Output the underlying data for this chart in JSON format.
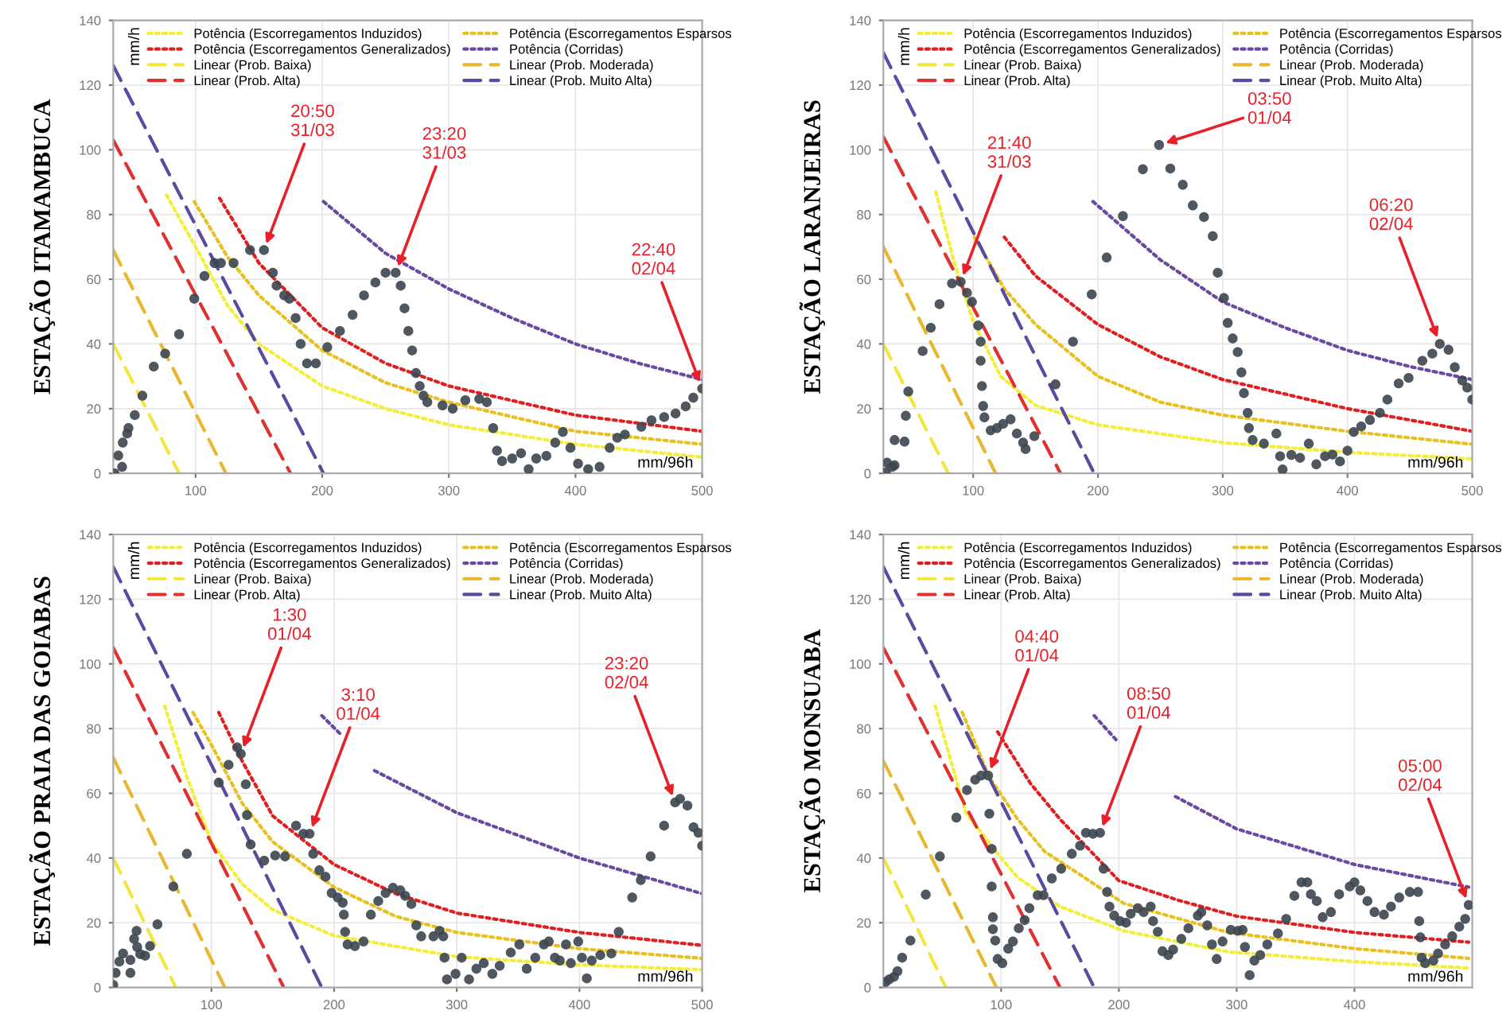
{
  "chart_data": [
    {
      "type": "scatter",
      "title": "ESTAÇÃO ITAMAMBUCA",
      "xlabel": "mm/96h",
      "ylabel": "mm/h",
      "xlim": [
        35,
        500
      ],
      "ylim": [
        0,
        140
      ],
      "xticks": [
        100,
        200,
        300,
        400,
        500
      ],
      "yticks": [
        0,
        20,
        40,
        60,
        80,
        100,
        120,
        140
      ],
      "grid": true,
      "legend": "top",
      "series": [
        {
          "name": "Potência (Escorregamentos Induzidos)",
          "type": "line",
          "line_style": "dotted",
          "color": "#f2ee3a",
          "x": [
            77,
            100,
            125,
            150,
            200,
            250,
            300,
            400,
            500
          ],
          "values": [
            86,
            70,
            52,
            40,
            27,
            20,
            15,
            9,
            5
          ]
        },
        {
          "name": "Potência (Escorregamentos Esparsos",
          "type": "line",
          "line_style": "dotted",
          "color": "#e8c020",
          "x": [
            99,
            125,
            150,
            200,
            250,
            300,
            400,
            500
          ],
          "values": [
            84,
            67,
            55,
            38,
            28,
            22,
            13,
            9
          ]
        },
        {
          "name": "Potência (Escorregamentos Generalizados)",
          "type": "line",
          "line_style": "dotted",
          "color": "#e02020",
          "x": [
            119,
            150,
            200,
            250,
            300,
            400,
            500
          ],
          "values": [
            85,
            65,
            45,
            34,
            27,
            18,
            13
          ]
        },
        {
          "name": "Potência (Corridas)",
          "type": "line",
          "line_style": "dotted",
          "color": "#6a4aa0",
          "x": [
            201,
            250,
            300,
            350,
            400,
            450,
            500
          ],
          "values": [
            84,
            68,
            57,
            48,
            40,
            34,
            29
          ]
        },
        {
          "name": "Linear (Prob. Baixa)",
          "type": "line",
          "line_style": "dashed",
          "color": "#f2e640",
          "x": [
            35,
            87
          ],
          "values": [
            40,
            0
          ]
        },
        {
          "name": "Linear (Prob. Moderada)",
          "type": "line",
          "line_style": "dashed",
          "color": "#e8b830",
          "x": [
            35,
            124
          ],
          "values": [
            69,
            0
          ]
        },
        {
          "name": "Linear (Prob. Alta)",
          "type": "line",
          "line_style": "dashed",
          "color": "#e03030",
          "x": [
            35,
            175
          ],
          "values": [
            103,
            0
          ]
        },
        {
          "name": "Linear (Prob. Muito Alta)",
          "type": "line",
          "line_style": "dashed",
          "color": "#5a4aa0",
          "x": [
            35,
            201
          ],
          "values": [
            126,
            0
          ]
        },
        {
          "marker": "circle",
          "color": "#3c4650",
          "x": [
            36,
            39,
            42,
            42.5,
            46,
            47,
            52,
            58,
            67,
            76,
            87,
            99,
            107,
            115,
            120,
            130,
            143,
            154,
            161,
            164,
            170,
            174,
            179,
            183,
            188,
            195,
            204,
            214,
            224,
            233,
            242,
            250,
            258,
            262,
            265,
            268,
            271,
            274,
            277,
            280,
            283,
            295,
            303,
            313,
            324,
            330,
            335,
            338,
            342,
            350,
            357,
            363,
            369,
            377,
            384,
            390,
            396,
            402,
            410,
            419,
            427,
            433,
            439,
            452,
            460,
            470,
            479,
            487,
            493,
            500
          ],
          "values": [
            0,
            5.5,
            2,
            9.5,
            12.3,
            14,
            18,
            24,
            33,
            37,
            43,
            54,
            61,
            65,
            65,
            65,
            69,
            69,
            62,
            58,
            55,
            54,
            48,
            40,
            34,
            34,
            39,
            44,
            49,
            55,
            59,
            62,
            62,
            58,
            51,
            44,
            38,
            31,
            27,
            24,
            22,
            21,
            20,
            22.6,
            23,
            22,
            14,
            7,
            3.8,
            4.6,
            6.2,
            1.3,
            4.6,
            5.4,
            9.5,
            12.8,
            7.9,
            3,
            1.3,
            2,
            7.9,
            11,
            12,
            14.4,
            16.4,
            17.4,
            18.5,
            20.7,
            23.4,
            26.2
          ]
        }
      ],
      "annotations": [
        {
          "text": "20:50\n31/03",
          "x": 154,
          "y": 69
        },
        {
          "text": "23:20\n31/03",
          "x": 258,
          "y": 62
        },
        {
          "text": "22:40\n02/04",
          "x": 500,
          "y": 26.2
        }
      ]
    },
    {
      "type": "scatter",
      "title": "ESTAÇÃO LARANJEIRAS",
      "xlabel": "mm/96h",
      "ylabel": "mm/h",
      "xlim": [
        28,
        500
      ],
      "ylim": [
        0,
        140
      ],
      "xticks": [
        100,
        200,
        300,
        400,
        500
      ],
      "yticks": [
        0,
        20,
        40,
        60,
        80,
        100,
        120,
        140
      ],
      "grid": true,
      "legend": "top",
      "series": [
        {
          "name": "Potência (Escorregamentos Induzidos)",
          "type": "line",
          "line_style": "dotted",
          "color": "#f2ee3a",
          "x": [
            70,
            85,
            100,
            122,
            150,
            200,
            300,
            400,
            500
          ],
          "values": [
            87,
            65,
            47,
            30,
            21,
            15,
            9.5,
            6.5,
            4.5
          ]
        },
        {
          "name": "Potência (Escorregamentos Esparsos",
          "type": "line",
          "line_style": "dotted",
          "color": "#e8c020",
          "x": [
            101,
            125,
            150,
            200,
            250,
            300,
            400,
            500
          ],
          "values": [
            73,
            57,
            46,
            30,
            22,
            18,
            13,
            9
          ]
        },
        {
          "name": "Potência (Escorregamentos Generalizados)",
          "type": "line",
          "line_style": "dotted",
          "color": "#e02020",
          "x": [
            125,
            150,
            200,
            250,
            300,
            400,
            500
          ],
          "values": [
            73,
            61,
            46,
            36,
            29,
            20,
            13
          ]
        },
        {
          "name": "Potência (Corridas)",
          "type": "line",
          "line_style": "dotted",
          "color": "#6a4aa0",
          "x": [
            196,
            250,
            300,
            350,
            400,
            450,
            500
          ],
          "values": [
            84,
            66,
            53,
            45,
            38,
            33,
            29
          ]
        },
        {
          "name": "Linear (Prob. Baixa)",
          "type": "line",
          "line_style": "dashed",
          "color": "#f2e640",
          "x": [
            28,
            80
          ],
          "values": [
            40,
            0
          ]
        },
        {
          "name": "Linear (Prob. Moderada)",
          "type": "line",
          "line_style": "dashed",
          "color": "#e8b830",
          "x": [
            28,
            118
          ],
          "values": [
            70,
            0
          ]
        },
        {
          "name": "Linear (Prob. Alta)",
          "type": "line",
          "line_style": "dashed",
          "color": "#e03030",
          "x": [
            28,
            170
          ],
          "values": [
            104,
            0
          ]
        },
        {
          "name": "Linear (Prob. Muito Alta)",
          "type": "line",
          "line_style": "dashed",
          "color": "#5a4aa0",
          "x": [
            28,
            197
          ],
          "values": [
            130,
            0
          ]
        },
        {
          "marker": "circle",
          "color": "#3c4650",
          "x": [
            30,
            31,
            35,
            37,
            37,
            45,
            46,
            48,
            59.5,
            66,
            73,
            83,
            90,
            95,
            99,
            104,
            106,
            106,
            107,
            108,
            109,
            114,
            119,
            124,
            130,
            135,
            140,
            142,
            149,
            166,
            180,
            195,
            207,
            220,
            236,
            249,
            258,
            268,
            276,
            285,
            292,
            296,
            301,
            304,
            308,
            312,
            315,
            317,
            320,
            321,
            324,
            333,
            343,
            346,
            348,
            355,
            362,
            369,
            375,
            382,
            388,
            394,
            400,
            405,
            411,
            418,
            426,
            432,
            441,
            449,
            460,
            468,
            474,
            481,
            486,
            492,
            496,
            500
          ],
          "values": [
            0.3,
            3.3,
            2,
            10.3,
            2.5,
            9.8,
            17.8,
            25.3,
            37.8,
            45,
            52.3,
            58.7,
            59.2,
            55.8,
            53,
            45.7,
            40.7,
            34.8,
            27,
            20.8,
            17.3,
            13.3,
            14,
            15.3,
            16.7,
            12.3,
            9.5,
            7.5,
            11.5,
            27.5,
            40.7,
            55.3,
            66.7,
            79.5,
            94,
            101.5,
            94.2,
            89.2,
            82.8,
            79.2,
            73.3,
            62,
            54.2,
            46.5,
            41.7,
            37.5,
            31.2,
            24.8,
            18.7,
            14,
            10.3,
            9.2,
            12.3,
            5.3,
            1.2,
            5.7,
            4.8,
            9.2,
            2.8,
            5.3,
            5.8,
            3.7,
            7,
            12.8,
            14.5,
            16.5,
            18.7,
            22.8,
            27.8,
            29.5,
            34.8,
            37,
            40,
            38.2,
            32.8,
            28.7,
            26.5,
            22.8
          ]
        }
      ],
      "annotations": [
        {
          "text": "21:40\n31/03",
          "x": 90,
          "y": 59.2
        },
        {
          "text": "03:50\n01/04",
          "x": 249,
          "y": 101.5
        },
        {
          "text": "06:20\n02/04",
          "x": 474,
          "y": 40
        }
      ]
    },
    {
      "type": "scatter",
      "title": "ESTAÇÃO PRAIA DAS GOIABAS",
      "xlabel": "mm/96h",
      "ylabel": "mm/h",
      "xlim": [
        20,
        500
      ],
      "ylim": [
        0,
        140
      ],
      "xticks": [
        100,
        200,
        300,
        400,
        500
      ],
      "yticks": [
        0,
        20,
        40,
        60,
        80,
        100,
        120,
        140
      ],
      "grid": true,
      "legend": "top",
      "series": [
        {
          "name": "Potência (Escorregamentos Induzidos)",
          "type": "line",
          "line_style": "dotted",
          "color": "#f2ee3a",
          "x": [
            62,
            80,
            100,
            125,
            150,
            200,
            300,
            400,
            500
          ],
          "values": [
            87,
            65,
            45,
            32,
            24,
            16,
            9.5,
            7,
            5.5
          ]
        },
        {
          "name": "Potência (Escorregamentos Esparsos",
          "type": "line",
          "line_style": "dotted",
          "color": "#e8c020",
          "x": [
            85,
            100,
            125,
            150,
            200,
            250,
            300,
            400,
            500
          ],
          "values": [
            85,
            75,
            57,
            45,
            31,
            22,
            17,
            12,
            9
          ]
        },
        {
          "name": "Potência (Escorregamentos Generalizados)",
          "type": "line",
          "line_style": "dotted",
          "color": "#e02020",
          "x": [
            106,
            125,
            150,
            200,
            250,
            300,
            400,
            500
          ],
          "values": [
            85,
            70,
            53,
            38,
            29,
            23,
            17,
            13
          ]
        },
        {
          "name": "Potência (Corridas)",
          "type": "line",
          "line_style": "dotted",
          "color": "#6a4aa0",
          "x": [
            190,
            206,
            220,
            233,
            300,
            400,
            500
          ],
          "values": [
            84,
            78,
            null,
            67,
            54,
            40,
            29
          ]
        },
        {
          "name": "Linear (Prob. Baixa)",
          "type": "line",
          "line_style": "dashed",
          "color": "#f2e640",
          "x": [
            20,
            71
          ],
          "values": [
            40,
            0
          ]
        },
        {
          "name": "Linear (Prob. Moderada)",
          "type": "line",
          "line_style": "dashed",
          "color": "#e8b830",
          "x": [
            20,
            111
          ],
          "values": [
            71,
            0
          ]
        },
        {
          "name": "Linear (Prob. Alta)",
          "type": "line",
          "line_style": "dashed",
          "color": "#e03030",
          "x": [
            20,
            159
          ],
          "values": [
            105,
            0
          ]
        },
        {
          "name": "Linear (Prob. Muito Alta)",
          "type": "line",
          "line_style": "dashed",
          "color": "#5a4aa0",
          "x": [
            20,
            190
          ],
          "values": [
            130,
            0
          ]
        },
        {
          "marker": "circle",
          "color": "#3c4650",
          "x": [
            20,
            22,
            25,
            28,
            34,
            34,
            37,
            39,
            39.5,
            42,
            46,
            50,
            56,
            69,
            80,
            106,
            114,
            121,
            124,
            128,
            129,
            132,
            143,
            152,
            160,
            169,
            175,
            180,
            183,
            188,
            193,
            198,
            203,
            207,
            208,
            209,
            211,
            217,
            224,
            230,
            236,
            242,
            248,
            254,
            258,
            263,
            267,
            271,
            281,
            286,
            289,
            290,
            292,
            299,
            304,
            310,
            316,
            322,
            329,
            335,
            344,
            351,
            357,
            364,
            371,
            375,
            380,
            384,
            389,
            393,
            399,
            402,
            406,
            410,
            417,
            426,
            432,
            443,
            450,
            458,
            469,
            478,
            482,
            488,
            493,
            497,
            500
          ],
          "values": [
            0.8,
            4.5,
            8,
            10.5,
            4.5,
            8.5,
            15,
            17.5,
            12.5,
            10.3,
            9.8,
            12.8,
            19.5,
            31.2,
            41.3,
            63.3,
            68.8,
            74.2,
            72.2,
            62.8,
            53.3,
            44.2,
            39.2,
            40.8,
            40.5,
            50,
            47.5,
            47.5,
            41.3,
            36.2,
            34.2,
            29.2,
            27.8,
            26.2,
            22.5,
            17.2,
            13.3,
            12.8,
            14.2,
            22.5,
            26.7,
            29.2,
            30.8,
            30,
            28.3,
            25.8,
            19.2,
            15.8,
            15.8,
            17.5,
            15.8,
            9.2,
            2.5,
            4.2,
            9.2,
            2.5,
            5.8,
            7.5,
            4.2,
            6.7,
            10.8,
            13.3,
            5.8,
            9.2,
            13.3,
            14.2,
            9.2,
            8.3,
            13.3,
            7.5,
            14.2,
            9.2,
            2.8,
            8.3,
            10,
            10.5,
            17.2,
            27.8,
            33.2,
            40.5,
            50,
            57.2,
            58.3,
            56.2,
            49.5,
            47.8,
            43.8
          ]
        }
      ],
      "annotations": [
        {
          "text": "1:30\n01/04",
          "x": 124,
          "y": 72.2
        },
        {
          "text": "3:10\n01/04",
          "x": 180,
          "y": 47.5
        },
        {
          "text": "23:20\n02/04",
          "x": 478,
          "y": 57.2
        }
      ]
    },
    {
      "type": "scatter",
      "title": "ESTAÇÃO MONSUABA",
      "xlabel": "mm/96h",
      "ylabel": "mm/h",
      "xlim": [
        0,
        500
      ],
      "ylim": [
        0,
        140
      ],
      "xticks": [
        100,
        200,
        300,
        400
      ],
      "yticks": [
        0,
        20,
        40,
        60,
        80,
        100,
        120,
        140
      ],
      "grid": true,
      "legend": "top",
      "series": [
        {
          "name": "Potência (Escorregamentos Induzidos)",
          "type": "line",
          "line_style": "dotted",
          "color": "#f2ee3a",
          "x": [
            44,
            70,
            100,
            114,
            150,
            204,
            293,
            400,
            497
          ],
          "values": [
            87,
            54,
            40,
            34,
            25,
            17.5,
            11,
            8,
            6
          ]
        },
        {
          "name": "Potência (Escorregamentos Esparsos",
          "type": "line",
          "line_style": "dotted",
          "color": "#e8c020",
          "x": [
            67,
            90,
            114,
            137,
            204,
            293,
            400,
            497
          ],
          "values": [
            85,
            65,
            52,
            42,
            26,
            17,
            12,
            9
          ]
        },
        {
          "name": "Potência (Escorregamentos Generalizados)",
          "type": "line",
          "line_style": "dotted",
          "color": "#e02020",
          "x": [
            97,
            125,
            150,
            200,
            250,
            300,
            400,
            497
          ],
          "values": [
            79,
            63,
            52,
            33,
            27,
            22,
            17,
            14
          ]
        },
        {
          "name": "Potência (Corridas)",
          "type": "line",
          "line_style": "dotted",
          "color": "#6a4aa0",
          "x": [
            179,
            199,
            220,
            248,
            300,
            400,
            497
          ],
          "values": [
            84,
            76,
            null,
            59,
            49,
            38,
            31
          ]
        },
        {
          "name": "Linear (Prob. Baixa)",
          "type": "line",
          "line_style": "dashed",
          "color": "#f2e640",
          "x": [
            0,
            53
          ],
          "values": [
            40,
            0
          ]
        },
        {
          "name": "Linear (Prob. Moderada)",
          "type": "line",
          "line_style": "dashed",
          "color": "#e8b830",
          "x": [
            0,
            96
          ],
          "values": [
            70,
            0
          ]
        },
        {
          "name": "Linear (Prob. Alta)",
          "type": "line",
          "line_style": "dashed",
          "color": "#e03030",
          "x": [
            0,
            150
          ],
          "values": [
            105,
            0
          ]
        },
        {
          "name": "Linear (Prob. Muito Alta)",
          "type": "line",
          "line_style": "dashed",
          "color": "#5a4aa0",
          "x": [
            0,
            179
          ],
          "values": [
            130,
            0
          ]
        },
        {
          "marker": "circle",
          "color": "#3c4650",
          "x": [
            2,
            5,
            9,
            12,
            16,
            23,
            36,
            48,
            62,
            71,
            78,
            83,
            89,
            90,
            92,
            92,
            93,
            93,
            95,
            97,
            101,
            106,
            110,
            115,
            120,
            124,
            131,
            136,
            143,
            151,
            160,
            167,
            172,
            178,
            184,
            187,
            190,
            192,
            196,
            201,
            206,
            210,
            216,
            221,
            227,
            229,
            233,
            237,
            242,
            246,
            253,
            259,
            267,
            270,
            275,
            279,
            283,
            288,
            295,
            301,
            305,
            307,
            311,
            315,
            320,
            326,
            335,
            342,
            349,
            355,
            360,
            363,
            368,
            373,
            380,
            387,
            396,
            400,
            405,
            411,
            417,
            425,
            431,
            438,
            447,
            454,
            455,
            456,
            457,
            460,
            467,
            471,
            477,
            483,
            489,
            494,
            497
          ],
          "values": [
            1.7,
            2.5,
            3.3,
            5,
            9.2,
            14.5,
            28.7,
            40.5,
            52.5,
            61,
            64.2,
            65.5,
            65.5,
            53.7,
            42.8,
            31.2,
            21.7,
            18,
            14.5,
            8.8,
            7.5,
            12,
            14.2,
            18.3,
            20.8,
            24.5,
            28.5,
            28.5,
            33.7,
            36.7,
            41.3,
            43.8,
            47.8,
            47.5,
            47.8,
            36.7,
            29.5,
            25,
            22.2,
            20.5,
            20,
            22.8,
            24.5,
            23.3,
            25,
            20.5,
            17.2,
            11.2,
            10,
            11.7,
            15,
            18.3,
            22.2,
            23.3,
            19.2,
            13.3,
            8.8,
            14.2,
            17.8,
            17.5,
            17.8,
            12.5,
            3.8,
            8.3,
            10,
            13.3,
            16.7,
            21.2,
            28.3,
            32.5,
            32.5,
            28.8,
            26.7,
            21.7,
            23.3,
            28.8,
            31.2,
            32.5,
            30,
            26.7,
            23.3,
            22.5,
            25,
            27.8,
            29.5,
            29.5,
            20.5,
            15.5,
            9.2,
            7.5,
            8.3,
            10.5,
            13.3,
            15.8,
            18.8,
            21.2,
            25.5
          ]
        }
      ],
      "annotations": [
        {
          "text": "04:40\n01/04",
          "x": 89,
          "y": 65.5
        },
        {
          "text": "08:50\n01/04",
          "x": 184,
          "y": 47.8
        },
        {
          "text": "05:00\n02/04",
          "x": 497,
          "y": 25.5
        }
      ]
    }
  ]
}
